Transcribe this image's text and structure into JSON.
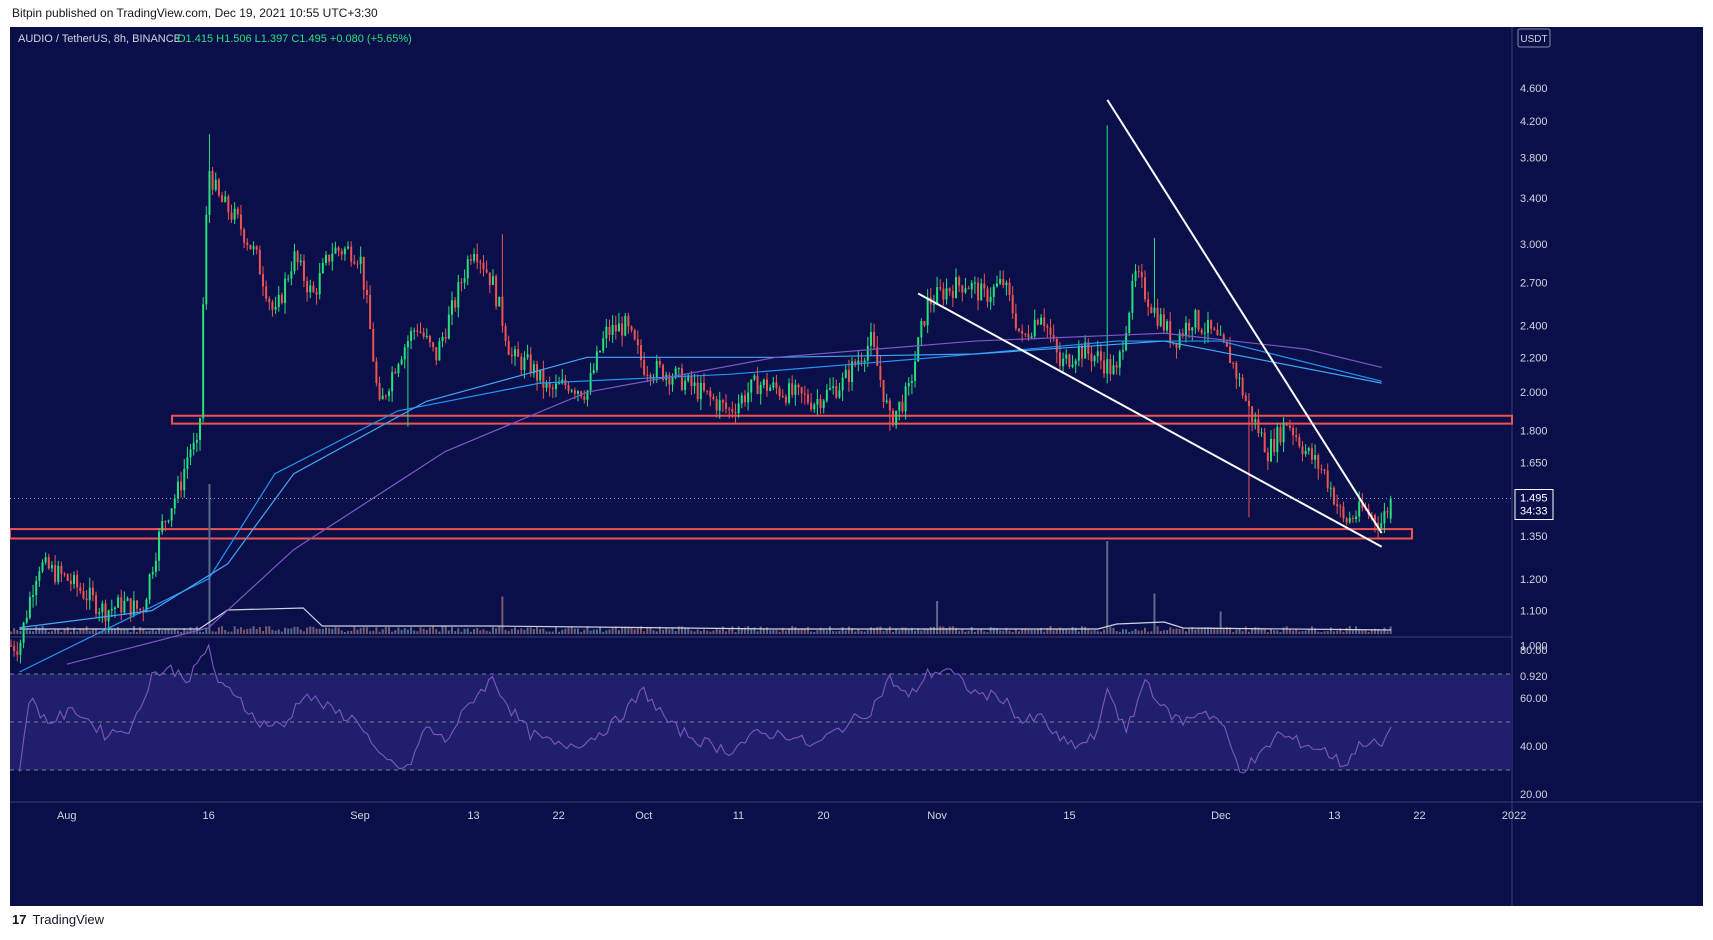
{
  "header": {
    "publish_text": "Bitpin published on TradingView.com, Dec 19, 2021 10:55 UTC+3:30"
  },
  "legend": {
    "symbol": "AUDIO / TetherUS, 8h, BINANCE",
    "ohlc": "O1.415  H1.506  L1.397  C1.495  +0.080 (+5.65%)"
  },
  "footer": {
    "brand": "TradingView",
    "logo_text": "17"
  },
  "colors": {
    "background": "#0a0f4a",
    "bull": "#26e07a",
    "bear": "#ef5350",
    "ma_short": "#2196f3",
    "ma_mid": "#42a5f5",
    "ma_long": "#7e57c2",
    "rsi": "#7e57c2",
    "zones": "#ef5350",
    "trendlines": "#ffffff"
  },
  "chart_data": [
    {
      "type": "candlestick",
      "axis_currency": "USDT",
      "price_axis_ticks": [
        "4.600",
        "4.200",
        "3.800",
        "3.400",
        "3.000",
        "2.700",
        "2.400",
        "2.200",
        "2.000",
        "1.800",
        "1.650",
        "1.495",
        "1.350",
        "1.200",
        "1.100",
        "1.000",
        "0.920"
      ],
      "price_axis_ticks_numeric": [
        4.6,
        4.2,
        3.8,
        3.4,
        3.0,
        2.7,
        2.4,
        2.2,
        2.0,
        1.8,
        1.65,
        1.35,
        1.2,
        1.1,
        1.0,
        0.92
      ],
      "log_scale": true,
      "time_axis_ticks": [
        "Aug",
        "16",
        "Sep",
        "13",
        "22",
        "Oct",
        "11",
        "20",
        "Nov",
        "15",
        "Dec",
        "13",
        "22",
        "2022"
      ],
      "last_price": "1.495",
      "countdown": "34:33",
      "price_path": [
        [
          "Jul 27",
          1.0
        ],
        [
          "Jul 29",
          1.25
        ],
        [
          "Aug 1",
          1.2
        ],
        [
          "Aug 3",
          1.15
        ],
        [
          "Aug 5",
          1.1
        ],
        [
          "Aug 7",
          1.12
        ],
        [
          "Aug 9",
          1.1
        ],
        [
          "Aug 11",
          1.38
        ],
        [
          "Aug 13",
          1.55
        ],
        [
          "Aug 14",
          1.72
        ],
        [
          "Aug 15",
          1.7
        ],
        [
          "Aug 16",
          3.7
        ],
        [
          "Aug 17",
          3.4
        ],
        [
          "Aug 19",
          3.2
        ],
        [
          "Aug 21",
          2.9
        ],
        [
          "Aug 23",
          2.45
        ],
        [
          "Aug 25",
          2.9
        ],
        [
          "Aug 27",
          2.6
        ],
        [
          "Aug 29",
          2.95
        ],
        [
          "Aug 31",
          2.95
        ],
        [
          "Sep 1",
          2.9
        ],
        [
          "Sep 3",
          1.9
        ],
        [
          "Sep 5",
          2.2
        ],
        [
          "Sep 7",
          2.4
        ],
        [
          "Sep 9",
          2.2
        ],
        [
          "Sep 11",
          2.55
        ],
        [
          "Sep 13",
          3.0
        ],
        [
          "Sep 15",
          2.7
        ],
        [
          "Sep 17",
          2.2
        ],
        [
          "Sep 19",
          2.15
        ],
        [
          "Sep 21",
          2.0
        ],
        [
          "Sep 23",
          2.05
        ],
        [
          "Sep 25",
          2.0
        ],
        [
          "Sep 27",
          2.35
        ],
        [
          "Sep 29",
          2.4
        ],
        [
          "Oct 1",
          2.15
        ],
        [
          "Oct 4",
          2.1
        ],
        [
          "Oct 7",
          2.0
        ],
        [
          "Oct 10",
          1.9
        ],
        [
          "Oct 13",
          2.05
        ],
        [
          "Oct 16",
          2.0
        ],
        [
          "Oct 19",
          1.95
        ],
        [
          "Oct 22",
          2.05
        ],
        [
          "Oct 25",
          2.3
        ],
        [
          "Oct 27",
          1.85
        ],
        [
          "Oct 29",
          2.0
        ],
        [
          "Oct 31",
          2.55
        ],
        [
          "Nov 2",
          2.65
        ],
        [
          "Nov 4",
          2.7
        ],
        [
          "Nov 6",
          2.6
        ],
        [
          "Nov 8",
          2.7
        ],
        [
          "Nov 10",
          2.3
        ],
        [
          "Nov 12",
          2.5
        ],
        [
          "Nov 14",
          2.15
        ],
        [
          "Nov 16",
          2.25
        ],
        [
          "Nov 18",
          2.2
        ],
        [
          "Nov 20",
          2.1
        ],
        [
          "Nov 22",
          2.75
        ],
        [
          "Nov 24",
          2.5
        ],
        [
          "Nov 26",
          2.3
        ],
        [
          "Nov 28",
          2.45
        ],
        [
          "Nov 30",
          2.35
        ],
        [
          "Dec 2",
          2.2
        ],
        [
          "Dec 4",
          1.9
        ],
        [
          "Dec 6",
          1.7
        ],
        [
          "Dec 8",
          1.85
        ],
        [
          "Dec 10",
          1.7
        ],
        [
          "Dec 12",
          1.6
        ],
        [
          "Dec 14",
          1.4
        ],
        [
          "Dec 16",
          1.45
        ],
        [
          "Dec 18",
          1.4
        ],
        [
          "Dec 19",
          1.495
        ]
      ],
      "support_zones": [
        [
          1.835,
          1.875
        ],
        [
          1.34,
          1.375
        ]
      ],
      "trendlines": [
        {
          "from": [
            "Oct 30",
            2.62
          ],
          "to": [
            "Dec 18",
            1.31
          ]
        },
        {
          "from": [
            "Nov 19",
            4.45
          ],
          "to": [
            "Dec 18",
            1.36
          ]
        }
      ],
      "moving_averages": [
        {
          "points": [
            [
              "Jul 27",
              0.93
            ],
            [
              "Aug 16",
              1.2
            ],
            [
              "Aug 23",
              1.6
            ],
            [
              "Sep 5",
              1.9
            ],
            [
              "Sep 20",
              2.05
            ],
            [
              "Oct 10",
              2.1
            ],
            [
              "Nov 1",
              2.2
            ],
            [
              "Nov 20",
              2.3
            ],
            [
              "Dec 1",
              2.3
            ],
            [
              "Dec 18",
              2.06
            ]
          ]
        },
        {
          "points": [
            [
              "Jul 27",
              1.05
            ],
            [
              "Aug 10",
              1.1
            ],
            [
              "Aug 18",
              1.25
            ],
            [
              "Aug 25",
              1.6
            ],
            [
              "Sep 8",
              1.95
            ],
            [
              "Sep 25",
              2.2
            ],
            [
              "Oct 15",
              2.2
            ],
            [
              "Nov 5",
              2.22
            ],
            [
              "Nov 25",
              2.3
            ],
            [
              "Dec 18",
              2.05
            ]
          ]
        },
        {
          "points": [
            [
              "Aug 1",
              0.95
            ],
            [
              "Aug 16",
              1.05
            ],
            [
              "Aug 25",
              1.3
            ],
            [
              "Sep 10",
              1.7
            ],
            [
              "Sep 25",
              2.0
            ],
            [
              "Oct 15",
              2.2
            ],
            [
              "Nov 5",
              2.3
            ],
            [
              "Nov 25",
              2.35
            ],
            [
              "Dec 10",
              2.25
            ],
            [
              "Dec 18",
              2.14
            ]
          ]
        }
      ]
    },
    {
      "type": "bar",
      "label": "volume",
      "notable_spikes": [
        [
          "Aug 16",
          1.0
        ],
        [
          "Nov 19",
          0.62
        ],
        [
          "Nov 24",
          0.27
        ],
        [
          "Sep 16",
          0.25
        ],
        [
          "Nov 1",
          0.22
        ],
        [
          "Dec 1",
          0.15
        ]
      ]
    },
    {
      "type": "line",
      "label": "RSI",
      "axis_ticks": [
        "80.00",
        "60.00",
        "40.00",
        "20.00"
      ],
      "bands": [
        70,
        50,
        30
      ],
      "ylim": [
        16,
        85
      ],
      "points": [
        [
          "Jul 27",
          30
        ],
        [
          "Jul 28",
          60
        ],
        [
          "Jul 30",
          50
        ],
        [
          "Aug 2",
          55
        ],
        [
          "Aug 5",
          45
        ],
        [
          "Aug 8",
          48
        ],
        [
          "Aug 10",
          70
        ],
        [
          "Aug 12",
          72
        ],
        [
          "Aug 14",
          68
        ],
        [
          "Aug 16",
          82
        ],
        [
          "Aug 17",
          65
        ],
        [
          "Aug 19",
          62
        ],
        [
          "Aug 21",
          50
        ],
        [
          "Aug 24",
          48
        ],
        [
          "Aug 26",
          62
        ],
        [
          "Aug 29",
          55
        ],
        [
          "Sep 1",
          50
        ],
        [
          "Sep 3",
          35
        ],
        [
          "Sep 6",
          30
        ],
        [
          "Sep 8",
          48
        ],
        [
          "Sep 10",
          42
        ],
        [
          "Sep 13",
          60
        ],
        [
          "Sep 15",
          68
        ],
        [
          "Sep 17",
          55
        ],
        [
          "Sep 19",
          45
        ],
        [
          "Sep 22",
          40
        ],
        [
          "Sep 25",
          42
        ],
        [
          "Sep 28",
          50
        ],
        [
          "Oct 1",
          63
        ],
        [
          "Oct 4",
          48
        ],
        [
          "Oct 7",
          42
        ],
        [
          "Oct 10",
          38
        ],
        [
          "Oct 13",
          45
        ],
        [
          "Oct 16",
          45
        ],
        [
          "Oct 19",
          40
        ],
        [
          "Oct 22",
          48
        ],
        [
          "Oct 25",
          55
        ],
        [
          "Oct 27",
          68
        ],
        [
          "Oct 29",
          60
        ],
        [
          "Oct 31",
          70
        ],
        [
          "Nov 2",
          72
        ],
        [
          "Nov 5",
          62
        ],
        [
          "Nov 8",
          60
        ],
        [
          "Nov 10",
          50
        ],
        [
          "Nov 12",
          52
        ],
        [
          "Nov 14",
          42
        ],
        [
          "Nov 16",
          40
        ],
        [
          "Nov 18",
          45
        ],
        [
          "Nov 19",
          65
        ],
        [
          "Nov 21",
          45
        ],
        [
          "Nov 23",
          68
        ],
        [
          "Nov 25",
          55
        ],
        [
          "Nov 27",
          50
        ],
        [
          "Nov 29",
          55
        ],
        [
          "Dec 1",
          50
        ],
        [
          "Dec 3",
          30
        ],
        [
          "Dec 5",
          35
        ],
        [
          "Dec 7",
          45
        ],
        [
          "Dec 9",
          42
        ],
        [
          "Dec 12",
          38
        ],
        [
          "Dec 14",
          32
        ],
        [
          "Dec 16",
          42
        ],
        [
          "Dec 18",
          40
        ],
        [
          "Dec 19",
          48
        ]
      ]
    }
  ]
}
